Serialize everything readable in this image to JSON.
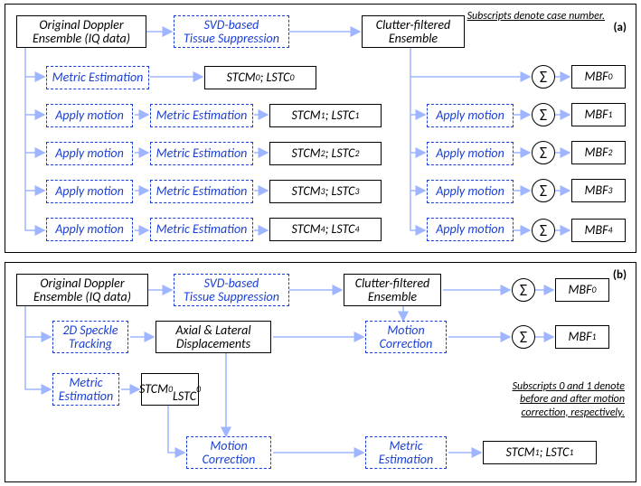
{
  "colors": {
    "black": "#000000",
    "blue": "#1a3fd6",
    "arrowBlue": "#9fb5ff",
    "background": "#ffffff"
  },
  "panelA": {
    "tag": "(a)",
    "note": "Subscripts denote case number.",
    "orig": "Original Doppler<br>Ensemble (IQ data)",
    "svd": "SVD-based<br>Tissue Suppression",
    "clut": "Clutter-filtered<br>Ensemble",
    "metric": "Metric Estimation",
    "apply": "Apply motion",
    "stlc0": "STCM<sub>0</sub> ; LSTC<sub>0</sub>",
    "stlc1": "STCM<sub>1</sub> ; LSTC<sub>1</sub>",
    "stlc2": "STCM<sub>2</sub> ; LSTC<sub>2</sub>",
    "stlc3": "STCM<sub>3</sub> ; LSTC<sub>3</sub>",
    "stlc4": "STCM<sub>4</sub> ; LSTC<sub>4</sub>",
    "sigma": "Σ",
    "mbf0": "MBF<sub>0</sub>",
    "mbf1": "MBF<sub>1</sub>",
    "mbf2": "MBF<sub>2</sub>",
    "mbf3": "MBF<sub>3</sub>",
    "mbf4": "MBF<sub>4</sub>"
  },
  "panelB": {
    "tag": "(b)",
    "note": "Subscripts 0 and 1 denote<br>before and after motion<br>correction, respectively.",
    "orig": "Original Doppler<br>Ensemble (IQ data)",
    "svd": "SVD-based<br>Tissue Suppression",
    "clut": "Clutter-filtered<br>Ensemble",
    "spk": "2D Speckle<br>Tracking",
    "disp": "Axial & Lateral<br>Displacements",
    "motcorr": "Motion<br>Correction",
    "metric": "Metric<br>Estimation",
    "st0": "STCM<sub>0</sub><br>LSTC<sub>0</sub>",
    "st1": "STCM<sub>1</sub> ; LSTC<sub>1</sub>",
    "sigma": "Σ",
    "mbf0": "MBF<sub>0</sub>",
    "mbf1": "MBF<sub>1</sub>"
  }
}
